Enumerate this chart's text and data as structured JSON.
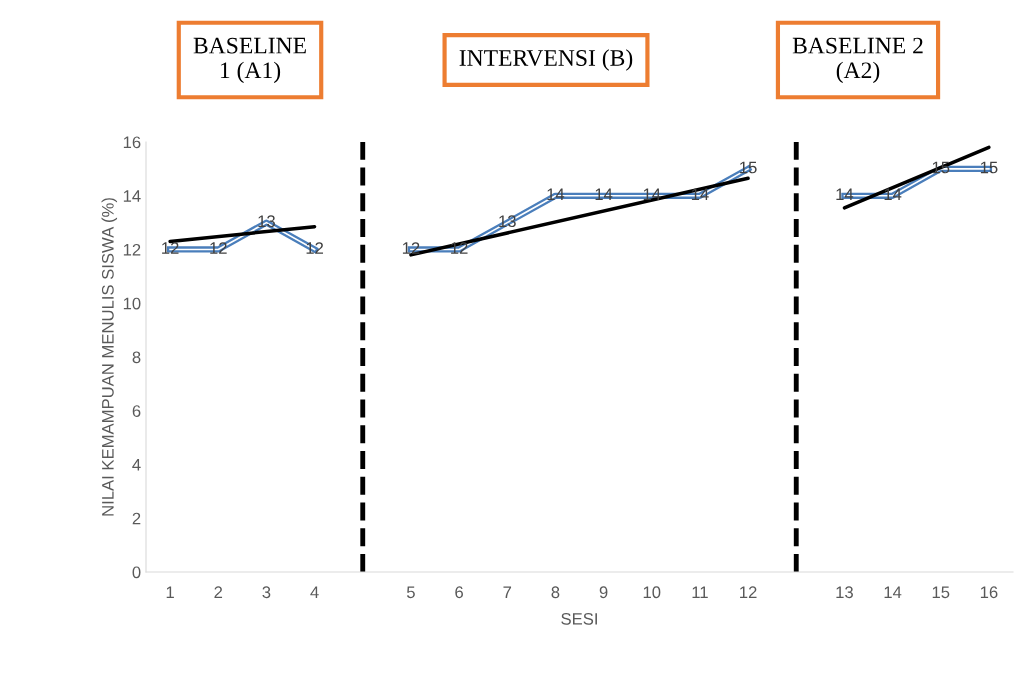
{
  "chart_data": {
    "type": "line",
    "categories": [
      "1",
      "2",
      "3",
      "4",
      null,
      "5",
      "6",
      "7",
      "8",
      "9",
      "10",
      "11",
      "12",
      null,
      "13",
      "14",
      "15",
      "16"
    ],
    "series": [
      {
        "color": "#4a7ebb",
        "values": [
          12,
          12,
          13,
          12,
          null,
          12,
          12,
          13,
          14,
          14,
          14,
          14,
          15,
          null,
          14,
          14,
          15,
          15
        ],
        "value_labels": [
          "12",
          "12",
          "13",
          "12",
          null,
          "12",
          "12",
          "13",
          "14",
          "14",
          "14",
          "14",
          "15",
          null,
          "14",
          "14",
          "15",
          "15"
        ]
      },
      {
        "type": "line",
        "color": "#000000",
        "x": [
          "1",
          "4"
        ],
        "values": [
          12.3,
          12.85
        ]
      },
      {
        "type": "line",
        "color": "#000000",
        "x": [
          "5",
          "12"
        ],
        "values": [
          11.8,
          14.65
        ]
      },
      {
        "type": "line",
        "color": "#000000",
        "x": [
          "13",
          "16"
        ],
        "values": [
          13.55,
          15.8
        ]
      }
    ],
    "ylim": [
      0,
      16
    ],
    "yticks": [
      0,
      2,
      4,
      6,
      8,
      10,
      12,
      14,
      16
    ],
    "xlabel": "SESI",
    "ylabel": "NILAI KEMAMPUAN MENULIS SISWA (%)",
    "annotations": [
      "BASELINE\n1 (A1)",
      "INTERVENSI (B)",
      "BASELINE 2\n(A2)"
    ],
    "legend": false
  }
}
